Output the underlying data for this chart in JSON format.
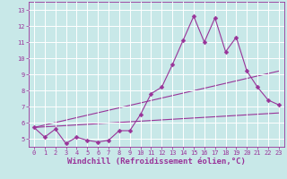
{
  "title": "",
  "xlabel": "Windchill (Refroidissement éolien,°C)",
  "ylabel": "",
  "bg_color": "#c8e8e8",
  "grid_color": "#ffffff",
  "line_color": "#993399",
  "xlim": [
    -0.5,
    23.5
  ],
  "ylim": [
    4.5,
    13.5
  ],
  "xticks": [
    0,
    1,
    2,
    3,
    4,
    5,
    6,
    7,
    8,
    9,
    10,
    11,
    12,
    13,
    14,
    15,
    16,
    17,
    18,
    19,
    20,
    21,
    22,
    23
  ],
  "yticks": [
    5,
    6,
    7,
    8,
    9,
    10,
    11,
    12,
    13
  ],
  "line1_x": [
    0,
    1,
    2,
    3,
    4,
    5,
    6,
    7,
    8,
    9,
    10,
    11,
    12,
    13,
    14,
    15,
    16,
    17,
    18,
    19,
    20,
    21,
    22,
    23
  ],
  "line1_y": [
    5.7,
    5.1,
    5.6,
    4.7,
    5.1,
    4.9,
    4.8,
    4.9,
    5.5,
    5.5,
    6.5,
    7.8,
    8.2,
    9.6,
    11.1,
    12.6,
    11.0,
    12.5,
    10.4,
    11.3,
    9.2,
    8.2,
    7.4,
    7.1
  ],
  "line2_x": [
    0,
    23
  ],
  "line2_y": [
    5.7,
    6.6
  ],
  "line3_x": [
    0,
    23
  ],
  "line3_y": [
    5.7,
    9.2
  ],
  "marker": "D",
  "markersize": 2.5,
  "linewidth": 0.8,
  "tick_fontsize": 5,
  "xlabel_fontsize": 6.5
}
